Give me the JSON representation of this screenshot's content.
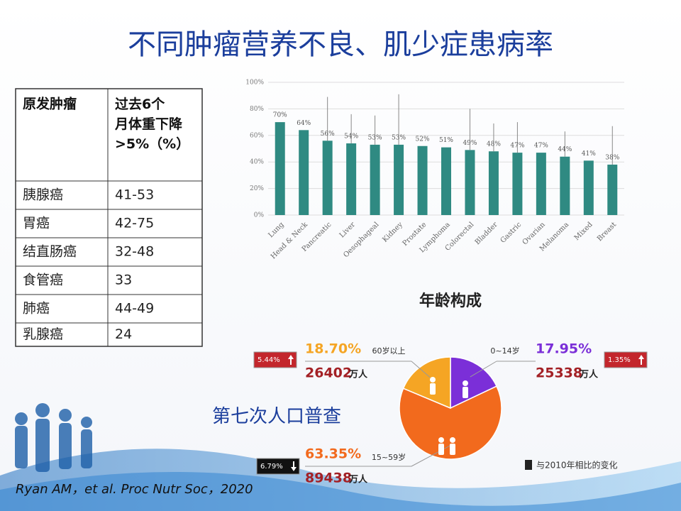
{
  "title": "不同肿瘤营养不良、肌少症患病率",
  "table": {
    "header": [
      "原发肿瘤",
      "过去6个月体重下降>5%（%）"
    ],
    "rows": [
      [
        "胰腺癌",
        "41-53"
      ],
      [
        "胃癌",
        "42-75"
      ],
      [
        "结直肠癌",
        "32-48"
      ],
      [
        "食管癌",
        "33"
      ],
      [
        "肺癌",
        "44-49"
      ],
      [
        "乳腺癌",
        "24"
      ]
    ]
  },
  "chart_data": [
    {
      "type": "bar",
      "color": "#2f8a82",
      "categories": [
        "Lung",
        "Head & Neck",
        "Pancreatic",
        "Liver",
        "Oesophageal",
        "Kidney",
        "Prostate",
        "Lymphoma",
        "Colorectal",
        "Bladder",
        "Gastric",
        "Ovarian",
        "Melanoma",
        "Mixed",
        "Breast"
      ],
      "values": [
        70,
        64,
        56,
        54,
        53,
        53,
        52,
        51,
        49,
        48,
        47,
        47,
        44,
        41,
        38
      ],
      "value_labels": [
        "70%",
        "64%",
        "56%",
        "54%",
        "53%",
        "53%",
        "52%",
        "51%",
        "49%",
        "48%",
        "47%",
        "47%",
        "44%",
        "41%",
        "38%"
      ],
      "errors": [
        null,
        null,
        33,
        22,
        22,
        38,
        null,
        null,
        31,
        21,
        23,
        null,
        19,
        null,
        29
      ],
      "ylim": [
        0,
        100
      ],
      "yticks": [
        {
          "value": 0,
          "label": "0%"
        },
        {
          "value": 20,
          "label": "20%"
        },
        {
          "value": 40,
          "label": "40%"
        },
        {
          "value": 60,
          "label": "60%"
        },
        {
          "value": 80,
          "label": "80%"
        },
        {
          "value": 100,
          "label": "100%"
        }
      ],
      "grid": true
    },
    {
      "type": "pie",
      "title": "年龄构成",
      "categories": [
        "0~14岁",
        "15~59岁",
        "60岁以上"
      ],
      "values": [
        17.95,
        63.35,
        18.7
      ],
      "value_labels": [
        "17.95%",
        "63.35%",
        "18.70%"
      ],
      "colors": [
        "#7b2fd8",
        "#f26a1d",
        "#f5a524"
      ],
      "counts": [
        25338,
        89438,
        26402
      ],
      "count_unit": "万人",
      "changes": [
        "1.35%",
        "6.79%",
        "5.44%"
      ],
      "change_directions": [
        "up",
        "down",
        "up"
      ],
      "change_note": "与2010年相比的变化"
    }
  ],
  "census_caption": "第七次人口普查",
  "citation": "Ryan AM，et al. Proc Nutr Soc，2020"
}
